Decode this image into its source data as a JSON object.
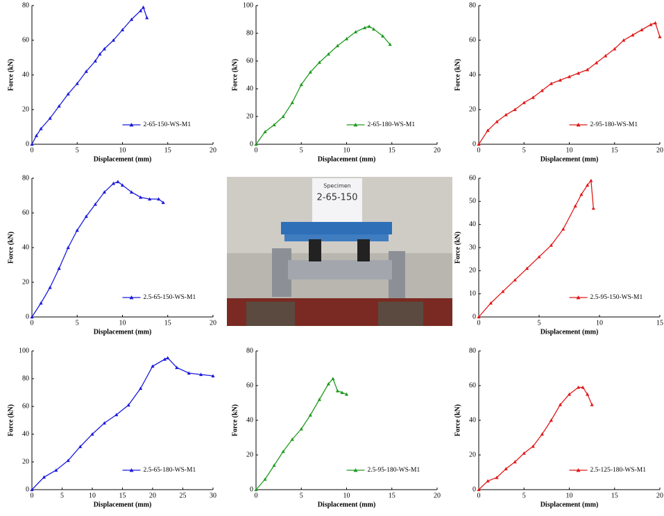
{
  "chart_data": [
    {
      "type": "line",
      "xlabel": "Displacement (mm)",
      "ylabel": "Force (kN)",
      "xlim": [
        0,
        20
      ],
      "ylim": [
        0,
        80
      ],
      "xticks": [
        0,
        5,
        10,
        15,
        20
      ],
      "yticks": [
        0,
        20,
        40,
        60,
        80
      ],
      "legend": "lower right",
      "x": [
        0,
        0.5,
        1,
        2,
        3,
        4,
        5,
        6,
        7,
        7.5,
        8,
        9,
        10,
        11,
        12,
        12.3,
        12.7
      ],
      "series": [
        {
          "name": "2-65-150-WS-M1",
          "color": "#1a1adb",
          "values": [
            0,
            5,
            9,
            15,
            22,
            29,
            35,
            42,
            48,
            52,
            55,
            60,
            66,
            72,
            77,
            79,
            73
          ]
        }
      ]
    },
    {
      "type": "line",
      "xlabel": "Displacement (mm)",
      "ylabel": "Force (kN)",
      "xlim": [
        0,
        20
      ],
      "ylim": [
        0,
        100
      ],
      "xticks": [
        0,
        5,
        10,
        15,
        20
      ],
      "yticks": [
        0,
        20,
        40,
        60,
        80,
        100
      ],
      "legend": "lower right",
      "x": [
        0,
        1,
        2,
        3,
        4,
        5,
        6,
        7,
        8,
        9,
        10,
        11,
        12,
        12.5,
        13,
        14,
        14.8
      ],
      "series": [
        {
          "name": "2-65-180-WS-M1",
          "color": "#1f9a1f",
          "values": [
            0,
            9,
            14,
            20,
            30,
            43,
            52,
            59,
            65,
            71,
            76,
            81,
            84,
            85,
            83,
            78,
            72
          ]
        }
      ]
    },
    {
      "type": "line",
      "xlabel": "Displacement (mm)",
      "ylabel": "Force (kN)",
      "xlim": [
        0,
        20
      ],
      "ylim": [
        0,
        80
      ],
      "xticks": [
        0,
        5,
        10,
        15,
        20
      ],
      "yticks": [
        0,
        20,
        40,
        60,
        80
      ],
      "legend": "lower right",
      "x": [
        0,
        1,
        2,
        3,
        4,
        5,
        6,
        7,
        8,
        9,
        10,
        11,
        12,
        13,
        14,
        15,
        16,
        17,
        18,
        19,
        19.5,
        20
      ],
      "series": [
        {
          "name": "2-95-180-WS-M1",
          "color": "#e01818",
          "values": [
            0,
            8,
            13,
            17,
            20,
            24,
            27,
            31,
            35,
            37,
            39,
            41,
            43,
            47,
            51,
            55,
            60,
            63,
            66,
            69,
            70,
            62
          ]
        }
      ]
    },
    {
      "type": "line",
      "xlabel": "Displacement (mm)",
      "ylabel": "Force (kN)",
      "xlim": [
        0,
        20
      ],
      "ylim": [
        0,
        80
      ],
      "xticks": [
        0,
        5,
        10,
        15,
        20
      ],
      "yticks": [
        0,
        20,
        40,
        60,
        80
      ],
      "legend": "lower right",
      "x": [
        0,
        1,
        2,
        3,
        4,
        5,
        6,
        7,
        8,
        9,
        9.5,
        10,
        11,
        12,
        13,
        14,
        14.5
      ],
      "series": [
        {
          "name": "2.5-65-150-WS-M1",
          "color": "#1a1adb",
          "values": [
            0,
            8,
            17,
            28,
            40,
            50,
            58,
            65,
            72,
            77,
            78,
            76,
            72,
            69,
            68,
            68,
            66
          ]
        }
      ]
    },
    {
      "type": "line",
      "xlabel": "Displacement (mm)",
      "ylabel": "Force (kN)",
      "xlim": [
        0,
        15
      ],
      "ylim": [
        0,
        60
      ],
      "xticks": [
        0,
        5,
        10,
        15
      ],
      "yticks": [
        0,
        10,
        20,
        30,
        40,
        50,
        60
      ],
      "legend": "lower right",
      "x": [
        0,
        1,
        2,
        3,
        4,
        5,
        6,
        7,
        8,
        8.5,
        9,
        9.3,
        9.5
      ],
      "series": [
        {
          "name": "2.5-95-150-WS-M1",
          "color": "#e01818",
          "values": [
            0,
            6,
            11,
            16,
            21,
            26,
            31,
            38,
            48,
            53,
            57,
            59,
            47
          ]
        }
      ]
    },
    {
      "type": "line",
      "xlabel": "Displacement (mm)",
      "ylabel": "Force (kN)",
      "xlim": [
        0,
        30
      ],
      "ylim": [
        0,
        100
      ],
      "xticks": [
        0,
        5,
        10,
        15,
        20,
        25,
        30
      ],
      "yticks": [
        0,
        20,
        40,
        60,
        80,
        100
      ],
      "legend": "lower right",
      "x": [
        0,
        2,
        4,
        6,
        8,
        10,
        12,
        14,
        16,
        18,
        20,
        22,
        22.5,
        24,
        26,
        28,
        30
      ],
      "series": [
        {
          "name": "2.5-65-180-WS-M1",
          "color": "#1a1adb",
          "values": [
            0,
            9,
            14,
            21,
            31,
            40,
            48,
            54,
            61,
            73,
            89,
            94,
            95,
            88,
            84,
            83,
            82
          ]
        }
      ]
    },
    {
      "type": "line",
      "xlabel": "Displacement (mm)",
      "ylabel": "Force (kN)",
      "xlim": [
        0,
        20
      ],
      "ylim": [
        0,
        80
      ],
      "xticks": [
        0,
        5,
        10,
        15,
        20
      ],
      "yticks": [
        0,
        20,
        40,
        60,
        80
      ],
      "legend": "lower right",
      "x": [
        0,
        1,
        2,
        3,
        4,
        5,
        6,
        7,
        8,
        8.5,
        9,
        9.5,
        10
      ],
      "series": [
        {
          "name": "2.5-95-180-WS-M1",
          "color": "#1f9a1f",
          "values": [
            0,
            6,
            14,
            22,
            29,
            35,
            43,
            52,
            61,
            64,
            57,
            56,
            55
          ]
        }
      ]
    },
    {
      "type": "line",
      "xlabel": "Displacement (mm)",
      "ylabel": "Force (kN)",
      "xlim": [
        0,
        20
      ],
      "ylim": [
        0,
        80
      ],
      "xticks": [
        0,
        5,
        10,
        15,
        20
      ],
      "yticks": [
        0,
        20,
        40,
        60,
        80
      ],
      "legend": "lower right",
      "x": [
        0,
        1,
        2,
        3,
        4,
        5,
        6,
        7,
        8,
        9,
        10,
        11,
        11.5,
        12,
        12.5
      ],
      "series": [
        {
          "name": "2.5-125-180-WS-M1",
          "color": "#e01818",
          "values": [
            0,
            5,
            7,
            12,
            16,
            21,
            25,
            32,
            40,
            49,
            55,
            59,
            59,
            55,
            49
          ]
        }
      ]
    }
  ],
  "photo": {
    "sign_top": "Specimen",
    "sign": "2-65-150"
  }
}
